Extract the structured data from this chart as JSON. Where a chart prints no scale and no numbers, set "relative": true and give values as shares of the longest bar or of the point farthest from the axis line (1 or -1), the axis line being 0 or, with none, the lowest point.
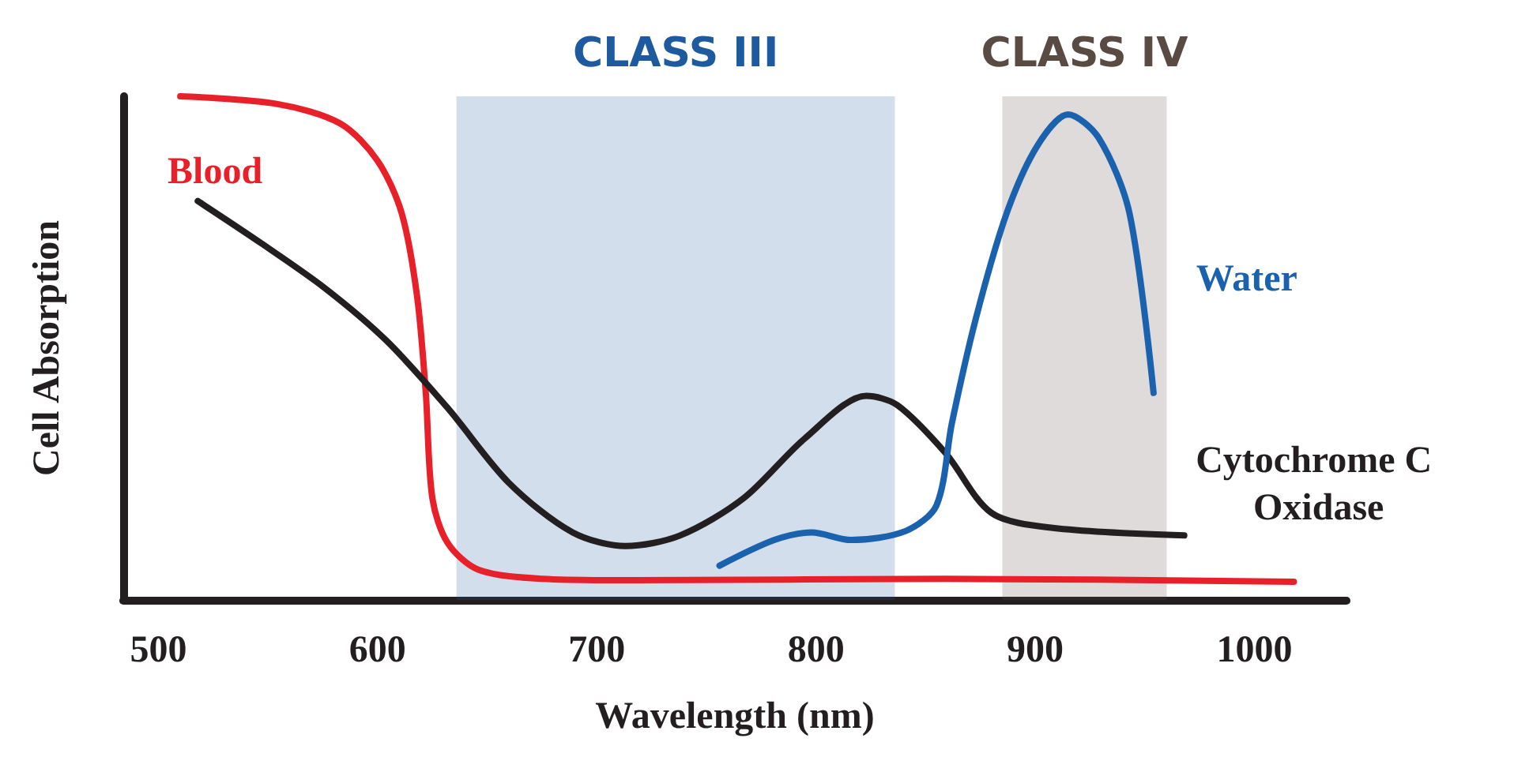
{
  "chart_data": {
    "type": "line",
    "xlabel": "Wavelength (nm)",
    "ylabel": "Cell Absorption",
    "relative": true,
    "xlim": [
      484,
      1042
    ],
    "xticks": [
      500,
      600,
      700,
      800,
      900,
      1000
    ],
    "grid": false,
    "legend": false,
    "marker": "none",
    "line_style": "solid",
    "bands": [
      {
        "axis": "x",
        "from": 636,
        "to": 836,
        "label": "CLASS III",
        "color": "#1e5aa0"
      },
      {
        "axis": "x",
        "from": 885,
        "to": 960,
        "label": "CLASS IV",
        "color": "#5a4a44"
      }
    ],
    "series": [
      {
        "name": "Blood",
        "color": "#e8202a",
        "x": [
          510,
          554,
          583,
          600,
          611,
          618,
          622,
          625,
          632,
          646,
          675,
          717,
          859,
          1018
        ],
        "values": [
          1.0,
          0.985,
          0.946,
          0.872,
          0.768,
          0.604,
          0.411,
          0.202,
          0.113,
          0.06,
          0.042,
          0.039,
          0.042,
          0.036
        ]
      },
      {
        "name": "Cytochrome C Oxidase",
        "color": "#231f20",
        "x": [
          518,
          547,
          576,
          604,
          632,
          660,
          689,
          713,
          738,
          767,
          795,
          823,
          837,
          859,
          880,
          908,
          968
        ],
        "values": [
          0.792,
          0.708,
          0.619,
          0.515,
          0.381,
          0.232,
          0.134,
          0.107,
          0.128,
          0.202,
          0.321,
          0.405,
          0.387,
          0.292,
          0.173,
          0.143,
          0.128
        ]
      },
      {
        "name": "Water",
        "color": "#1b62ae",
        "x": [
          756,
          781,
          798,
          816,
          841,
          855,
          862,
          873,
          887,
          901,
          915,
          929,
          943,
          954
        ],
        "values": [
          0.068,
          0.119,
          0.134,
          0.119,
          0.137,
          0.188,
          0.351,
          0.56,
          0.768,
          0.902,
          0.964,
          0.917,
          0.768,
          0.411
        ]
      }
    ]
  }
}
